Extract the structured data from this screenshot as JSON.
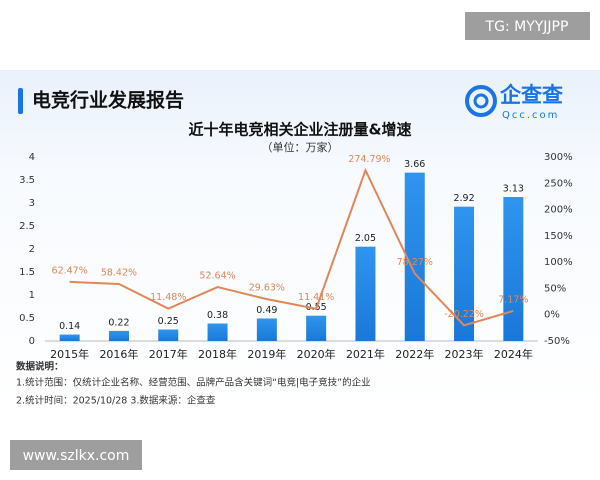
{
  "watermarks": {
    "top": "TG: MYYJJPP",
    "bottom": "www.szlkx.com"
  },
  "header": {
    "title": "电竞行业发展报告",
    "logo": "企查查",
    "logo_sub": "Qcc.com"
  },
  "chart_data": {
    "type": "bar_line",
    "title": "近十年电竞相关企业注册量&增速",
    "subtitle": "（单位：万家）",
    "categories": [
      "2015年",
      "2016年",
      "2017年",
      "2018年",
      "2019年",
      "2020年",
      "2021年",
      "2022年",
      "2023年",
      "2024年"
    ],
    "series": [
      {
        "type": "bar",
        "color": "#1e88e5",
        "values": [
          0.14,
          0.22,
          0.25,
          0.38,
          0.49,
          0.55,
          2.05,
          3.66,
          2.92,
          3.13
        ]
      },
      {
        "type": "line",
        "axis": "y2",
        "color": "#e0875a",
        "values": [
          62.47,
          58.42,
          11.48,
          52.64,
          29.63,
          11.41,
          274.79,
          78.27,
          -20.22,
          7.17
        ],
        "value_labels": [
          "62.47%",
          "58.42%",
          "11.48%",
          "52.64%",
          "29.63%",
          "11.41%",
          "274.79%",
          "78.27%",
          "-20.22%",
          "7.17%"
        ]
      }
    ],
    "ylim": [
      0,
      4
    ],
    "yticks": [
      0,
      0.5,
      1,
      1.5,
      2,
      2.5,
      3,
      3.5,
      4
    ],
    "y2lim": [
      -50,
      300
    ],
    "y2ticks": [
      {
        "value": -50,
        "label": "-50%"
      },
      {
        "value": 0,
        "label": "0%"
      },
      {
        "value": 50,
        "label": "50%"
      },
      {
        "value": 100,
        "label": "100%"
      },
      {
        "value": 150,
        "label": "150%"
      },
      {
        "value": 200,
        "label": "200%"
      },
      {
        "value": 250,
        "label": "250%"
      },
      {
        "value": 300,
        "label": "300%"
      }
    ]
  },
  "notes": [
    "数据说明：",
    "1.统计范围：仅统计企业名称、经营范围、品牌产品含关键词“电竞|电子竞技”的企业",
    "2.统计时间：2025/10/28 3.数据来源：企查查"
  ]
}
